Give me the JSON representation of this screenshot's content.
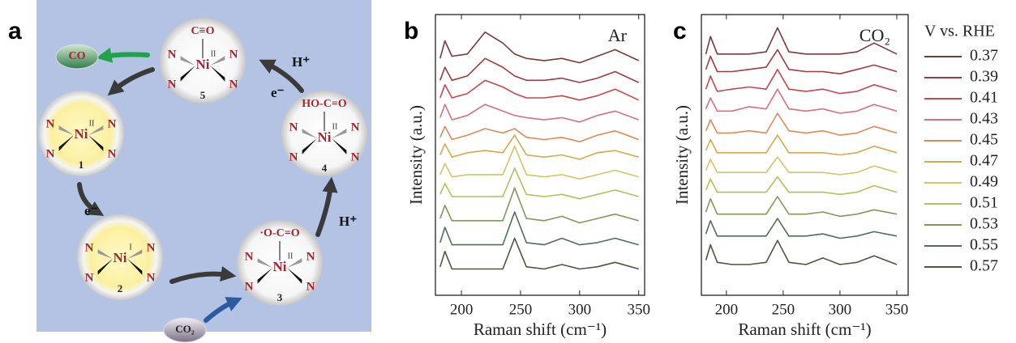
{
  "panel_labels": [
    "a",
    "b",
    "c"
  ],
  "diagram": {
    "metal": "Ni",
    "ligand": "N",
    "nodes": [
      {
        "label": "1",
        "oxidation": "II"
      },
      {
        "label": "2",
        "oxidation": "I"
      },
      {
        "label": "3",
        "oxidation": "II",
        "adduct": "·O-C=O"
      },
      {
        "label": "4",
        "oxidation": "II",
        "adduct": "HO-C=O"
      },
      {
        "label": "5",
        "oxidation": "II",
        "adduct": "C≡O"
      }
    ],
    "electron": "e⁻",
    "proton": "H⁺",
    "reactant": "CO₂",
    "product": "CO"
  },
  "chart_data": [
    {
      "type": "line",
      "annotation": "Ar",
      "xlabel": "Raman shift (cm⁻¹)",
      "ylabel": "Intensity (a.u.)",
      "xlim": [
        178,
        355
      ],
      "xticks": [
        200,
        250,
        300,
        350
      ],
      "ylim": [
        0,
        12.8
      ],
      "x": [
        182,
        186,
        192,
        205,
        220,
        235,
        245,
        255,
        270,
        285,
        300,
        315,
        330,
        350
      ],
      "series": [
        {
          "color": "#7b3a3a",
          "values": [
            10.8,
            11.6,
            10.9,
            11.0,
            12.0,
            11.5,
            11.0,
            10.8,
            10.7,
            10.8,
            10.6,
            10.9,
            11.2,
            10.7
          ]
        },
        {
          "color": "#a33a3e",
          "values": [
            9.8,
            10.4,
            9.8,
            10.0,
            10.8,
            10.4,
            10.0,
            9.8,
            9.8,
            9.9,
            9.7,
            9.9,
            10.2,
            9.7
          ]
        },
        {
          "color": "#c8474c",
          "values": [
            9.0,
            9.6,
            9.0,
            9.2,
            9.8,
            9.5,
            9.2,
            9.0,
            9.0,
            9.1,
            8.9,
            9.1,
            9.4,
            8.9
          ]
        },
        {
          "color": "#d9707a",
          "values": [
            8.1,
            8.7,
            8.0,
            8.2,
            8.7,
            8.4,
            8.2,
            8.1,
            8.0,
            8.1,
            7.9,
            8.2,
            8.4,
            8.0
          ]
        },
        {
          "color": "#e08a55",
          "values": [
            7.2,
            7.7,
            7.1,
            7.3,
            7.6,
            7.4,
            7.6,
            7.2,
            7.1,
            7.2,
            7.0,
            7.3,
            7.5,
            7.1
          ]
        },
        {
          "color": "#d9a84a",
          "values": [
            6.4,
            6.9,
            6.3,
            6.5,
            6.6,
            6.5,
            7.3,
            6.4,
            6.3,
            6.4,
            6.2,
            6.5,
            6.6,
            6.3
          ]
        },
        {
          "color": "#d8c463",
          "values": [
            5.5,
            6.0,
            5.4,
            5.5,
            5.5,
            5.5,
            6.8,
            5.5,
            5.4,
            5.5,
            5.3,
            5.5,
            5.7,
            5.4
          ]
        },
        {
          "color": "#b9be58",
          "values": [
            4.6,
            5.1,
            4.5,
            4.5,
            4.5,
            4.5,
            5.8,
            4.6,
            4.5,
            4.6,
            4.4,
            4.6,
            4.8,
            4.5
          ]
        },
        {
          "color": "#7f9a5a",
          "values": [
            3.5,
            4.1,
            3.4,
            3.4,
            3.4,
            3.4,
            4.9,
            3.5,
            3.4,
            3.6,
            3.3,
            3.5,
            3.7,
            3.4
          ]
        },
        {
          "color": "#4f6f57",
          "values": [
            2.4,
            3.1,
            2.3,
            2.3,
            2.3,
            2.3,
            3.8,
            2.4,
            2.3,
            2.6,
            2.3,
            2.4,
            2.6,
            2.3
          ]
        },
        {
          "color": "#55523f",
          "values": [
            1.3,
            2.0,
            1.2,
            1.2,
            1.2,
            1.2,
            2.6,
            1.3,
            1.2,
            1.4,
            1.2,
            1.3,
            1.5,
            1.2
          ]
        }
      ]
    },
    {
      "type": "line",
      "annotation": "CO₂",
      "xlabel": "Raman shift (cm⁻¹)",
      "ylabel": "Intensity (a.u.)",
      "xlim": [
        178,
        360
      ],
      "xticks": [
        200,
        250,
        300,
        350
      ],
      "ylim": [
        0,
        12.8
      ],
      "legend_title": "V vs. RHE",
      "x": [
        182,
        186,
        192,
        205,
        220,
        235,
        245,
        255,
        270,
        285,
        300,
        315,
        330,
        350
      ],
      "series": [
        {
          "name": "0.37",
          "color": "#7b3a3a",
          "values": [
            11.0,
            11.8,
            11.0,
            11.0,
            11.0,
            11.1,
            12.2,
            11.1,
            11.0,
            11.0,
            11.0,
            11.1,
            11.5,
            11.0
          ]
        },
        {
          "name": "0.39",
          "color": "#a33a3e",
          "values": [
            10.3,
            10.9,
            10.2,
            10.2,
            10.3,
            10.4,
            11.2,
            10.3,
            10.2,
            10.2,
            10.1,
            10.3,
            10.5,
            10.2
          ]
        },
        {
          "name": "0.41",
          "color": "#c8474c",
          "values": [
            9.4,
            10.0,
            9.3,
            9.4,
            9.5,
            9.4,
            10.3,
            9.4,
            9.3,
            9.4,
            9.2,
            9.3,
            9.6,
            9.3
          ]
        },
        {
          "name": "0.43",
          "color": "#d9707a",
          "values": [
            8.5,
            9.0,
            8.4,
            8.4,
            8.6,
            8.5,
            9.4,
            8.5,
            8.4,
            8.5,
            8.3,
            8.4,
            8.7,
            8.4
          ]
        },
        {
          "name": "0.45",
          "color": "#e08a55",
          "values": [
            7.5,
            8.0,
            7.4,
            7.4,
            7.5,
            7.4,
            8.3,
            7.5,
            7.4,
            7.5,
            7.3,
            7.4,
            7.7,
            7.4
          ]
        },
        {
          "name": "0.47",
          "color": "#d9a84a",
          "values": [
            6.6,
            7.1,
            6.5,
            6.5,
            6.5,
            6.5,
            7.3,
            6.5,
            6.5,
            6.5,
            6.4,
            6.5,
            6.8,
            6.5
          ]
        },
        {
          "name": "0.49",
          "color": "#d8c463",
          "values": [
            5.7,
            6.2,
            5.6,
            5.6,
            5.6,
            5.6,
            6.3,
            5.6,
            5.6,
            5.6,
            5.5,
            5.6,
            5.9,
            5.6
          ]
        },
        {
          "name": "0.51",
          "color": "#b9be58",
          "values": [
            4.8,
            5.3,
            4.7,
            4.7,
            4.7,
            4.7,
            5.4,
            4.7,
            4.7,
            4.7,
            4.6,
            4.7,
            5.0,
            4.7
          ]
        },
        {
          "name": "0.53",
          "color": "#7f9a5a",
          "values": [
            3.8,
            4.4,
            3.7,
            3.7,
            3.7,
            3.7,
            4.5,
            3.7,
            3.7,
            3.8,
            3.6,
            3.7,
            3.9,
            3.7
          ]
        },
        {
          "name": "0.55",
          "color": "#4f6f57",
          "values": [
            2.8,
            3.4,
            2.7,
            2.7,
            2.7,
            2.7,
            3.5,
            2.7,
            2.7,
            2.8,
            2.6,
            2.7,
            2.9,
            2.7
          ]
        },
        {
          "name": "0.57",
          "color": "#55523f",
          "values": [
            1.6,
            2.3,
            1.5,
            1.4,
            1.4,
            1.5,
            2.5,
            1.5,
            1.4,
            1.7,
            1.4,
            1.5,
            1.8,
            1.4
          ]
        }
      ]
    }
  ]
}
